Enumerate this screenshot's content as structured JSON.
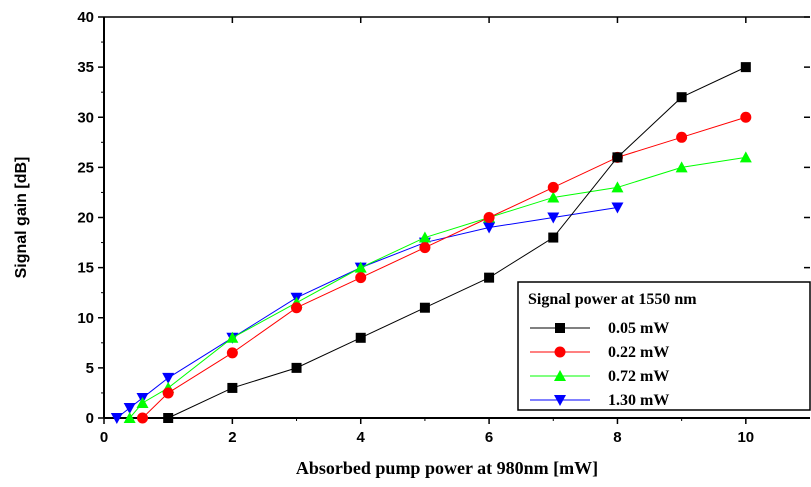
{
  "chart_data": {
    "type": "line",
    "title": "",
    "xlabel": "Absorbed pump power at 980nm [mW]",
    "ylabel": "Signal gain [dB]",
    "xlim": [
      0,
      11
    ],
    "ylim": [
      0,
      40
    ],
    "x_ticks": [
      "0",
      "2",
      "4",
      "6",
      "8",
      "10"
    ],
    "y_ticks": [
      "0",
      "5",
      "10",
      "15",
      "20",
      "25",
      "30",
      "35",
      "40"
    ],
    "grid": false,
    "legend": {
      "title": "Signal power at 1550 nm",
      "placement": "bottom-right"
    },
    "series": [
      {
        "name": "0.05 mW",
        "color": "#000000",
        "marker": "square",
        "x": [
          1,
          2,
          3,
          4,
          5,
          6,
          7,
          8,
          9,
          10
        ],
        "y": [
          0,
          3,
          5,
          8,
          11,
          14,
          18,
          26,
          32,
          35
        ]
      },
      {
        "name": "0.22 mW",
        "color": "#ff0000",
        "marker": "circle",
        "x": [
          0.6,
          1,
          2,
          3,
          4,
          5,
          6,
          7,
          8,
          9,
          10
        ],
        "y": [
          0,
          2.5,
          6.5,
          11,
          14,
          17,
          20,
          23,
          26,
          28,
          30
        ]
      },
      {
        "name": "0.72 mW",
        "color": "#00ff00",
        "marker": "triangle-up",
        "x": [
          0.4,
          0.6,
          1,
          2,
          3,
          4,
          5,
          6,
          7,
          8,
          9,
          10
        ],
        "y": [
          0,
          1.5,
          3,
          8,
          11.5,
          15,
          18,
          20,
          22,
          23,
          25,
          26
        ]
      },
      {
        "name": "1.30 mW",
        "color": "#0000ff",
        "marker": "triangle-down",
        "x": [
          0.2,
          0.4,
          0.6,
          1,
          2,
          3,
          4,
          5,
          6,
          7,
          8
        ],
        "y": [
          0,
          1,
          2,
          4,
          8,
          12,
          15,
          17.5,
          19,
          20,
          21
        ]
      }
    ]
  }
}
